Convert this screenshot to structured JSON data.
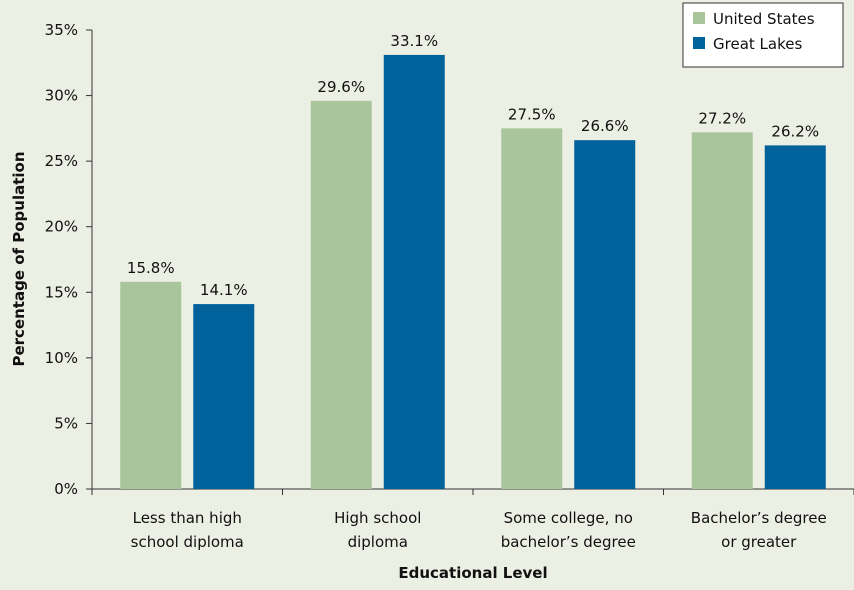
{
  "chart_data": {
    "type": "bar",
    "categories": [
      [
        "Less than high",
        "school diploma"
      ],
      [
        "High school",
        "diploma"
      ],
      [
        "Some college, no",
        "bachelor’s degree"
      ],
      [
        "Bachelor’s degree",
        "or greater"
      ]
    ],
    "series": [
      {
        "name": "United States",
        "color": "#a9c59b",
        "values": [
          15.8,
          29.6,
          27.5,
          27.2
        ],
        "labels": [
          "15.8%",
          "29.6%",
          "27.5%",
          "27.2%"
        ]
      },
      {
        "name": "Great Lakes",
        "color": "#00619b",
        "values": [
          14.1,
          33.1,
          26.6,
          26.2
        ],
        "labels": [
          "14.1%",
          "33.1%",
          "26.6%",
          "26.2%"
        ]
      }
    ],
    "xlabel": "Educational Level",
    "ylabel": "Percentage of Population",
    "ylim": [
      0,
      35
    ],
    "yticks": [
      0,
      5,
      10,
      15,
      20,
      25,
      30,
      35
    ],
    "ytick_labels": [
      "0%",
      "5%",
      "10%",
      "15%",
      "20%",
      "25%",
      "30%",
      "35%"
    ],
    "grid": false,
    "legend_position": "top-right"
  }
}
